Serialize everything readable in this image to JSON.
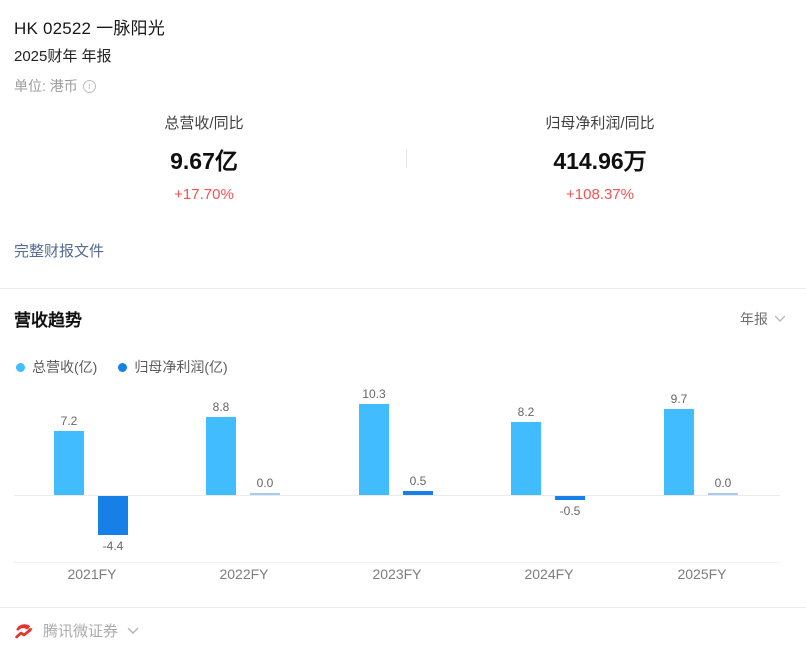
{
  "header": {
    "title": "HK 02522 一脉阳光",
    "subtitle": "2025财年 年报",
    "unit_label": "单位: 港币",
    "info_icon": "i"
  },
  "metrics": [
    {
      "label": "总营收/同比",
      "value": "9.67亿",
      "delta": "+17.70%"
    },
    {
      "label": "归母净利润/同比",
      "value": "414.96万",
      "delta": "+108.37%"
    }
  ],
  "report_link_label": "完整财报文件",
  "trend_section": {
    "title": "营收趋势",
    "period_selected": "年报"
  },
  "legend": [
    {
      "label": "总营收(亿)",
      "color": "#41bcff"
    },
    {
      "label": "归母净利润(亿)",
      "color": "#1680e6"
    }
  ],
  "chart_data": {
    "type": "bar",
    "categories": [
      "2021FY",
      "2022FY",
      "2023FY",
      "2024FY",
      "2025FY"
    ],
    "series": [
      {
        "name": "总营收(亿)",
        "color": "#41bcff",
        "values": [
          7.2,
          8.8,
          10.3,
          8.2,
          9.7
        ],
        "labels": [
          "7.2",
          "8.8",
          "10.3",
          "8.2",
          "9.7"
        ]
      },
      {
        "name": "归母净利润(亿)",
        "color": "#1680e6",
        "values": [
          -4.4,
          0.0,
          0.5,
          -0.5,
          0.0
        ],
        "labels": [
          "-4.4",
          "0.0",
          "0.5",
          "-0.5",
          "0.0"
        ]
      }
    ],
    "title": "营收趋势",
    "xlabel": "",
    "ylabel": "",
    "ylim": [
      -7.6,
      11.8
    ],
    "grid": false,
    "legend_position": "top-left",
    "value_labels_shown": true
  },
  "footer": {
    "brand": "腾讯微证券"
  },
  "colors": {
    "up_red": "#fa5151",
    "revenue_blue": "#41bcff",
    "profit_blue": "#1680e6",
    "link_blue": "#576b95",
    "brand_red": "#e5332e"
  }
}
